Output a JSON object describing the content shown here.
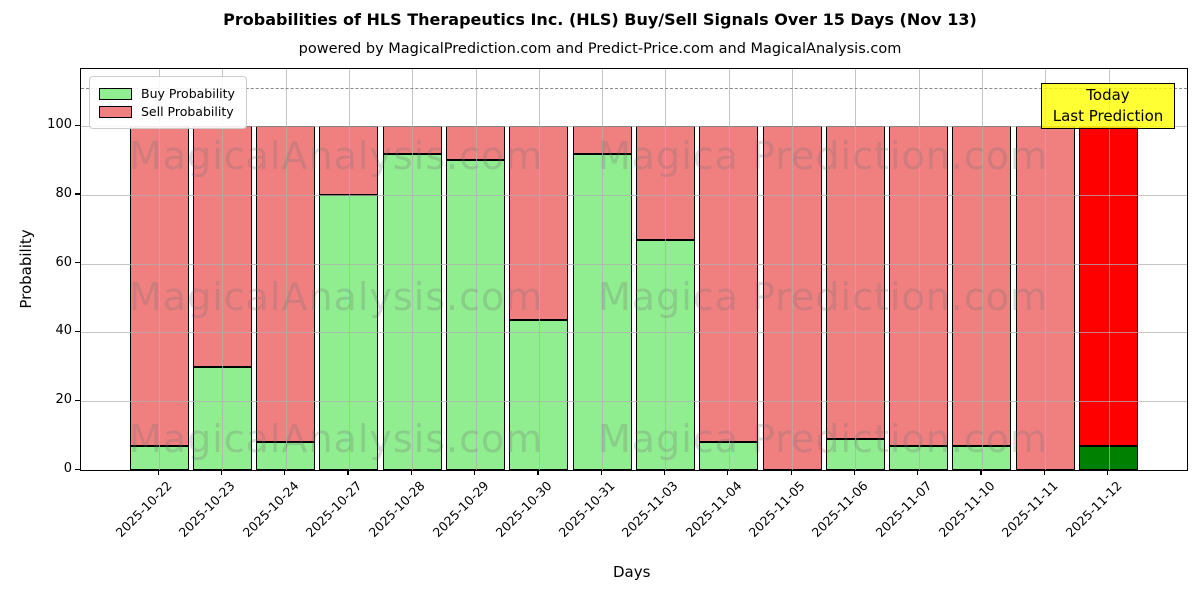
{
  "title": "Probabilities of HLS Therapeutics Inc. (HLS) Buy/Sell Signals Over 15 Days (Nov 13)",
  "subtitle": "powered by MagicalPrediction.com and Predict-Price.com and MagicalAnalysis.com",
  "legend": {
    "items": [
      {
        "label": "Buy Probability",
        "color": "#90ee90"
      },
      {
        "label": "Sell Probability",
        "color": "#f08080"
      }
    ]
  },
  "annotation": {
    "line1": "Today",
    "line2": "Last Prediction",
    "bg_color": "#ffff00"
  },
  "watermarks": [
    "MagicalAnalysis.com",
    "Magica Prediction.com"
  ],
  "chart_data": {
    "type": "bar",
    "stacked": true,
    "title": "Probabilities of HLS Therapeutics Inc. (HLS) Buy/Sell Signals Over 15 Days (Nov 13)",
    "xlabel": "Days",
    "ylabel": "Probability",
    "categories": [
      "2025-10-22",
      "2025-10-23",
      "2025-10-24",
      "2025-10-27",
      "2025-10-28",
      "2025-10-29",
      "2025-10-30",
      "2025-10-31",
      "2025-11-03",
      "2025-11-04",
      "2025-11-05",
      "2025-11-06",
      "2025-11-07",
      "2025-11-10",
      "2025-11-11",
      "2025-11-12"
    ],
    "series": [
      {
        "name": "Buy Probability",
        "color": "#90ee90",
        "values": [
          7,
          30,
          8,
          80,
          92,
          90,
          43.5,
          92,
          67,
          8,
          0,
          9,
          7,
          7,
          0,
          7
        ]
      },
      {
        "name": "Sell Probability",
        "color": "#f08080",
        "values": [
          93,
          70,
          92,
          20,
          8,
          10,
          56.5,
          8,
          33,
          92,
          100,
          91,
          93,
          93,
          100,
          93
        ]
      }
    ],
    "highlight_last_bar": {
      "buy_color": "#008000",
      "sell_color": "#ff0000"
    },
    "yticks": [
      0,
      20,
      40,
      60,
      80,
      100
    ],
    "ylim": [
      0,
      116.5
    ],
    "dashed_line_y": 111,
    "grid": true,
    "legend_position": "upper left"
  }
}
